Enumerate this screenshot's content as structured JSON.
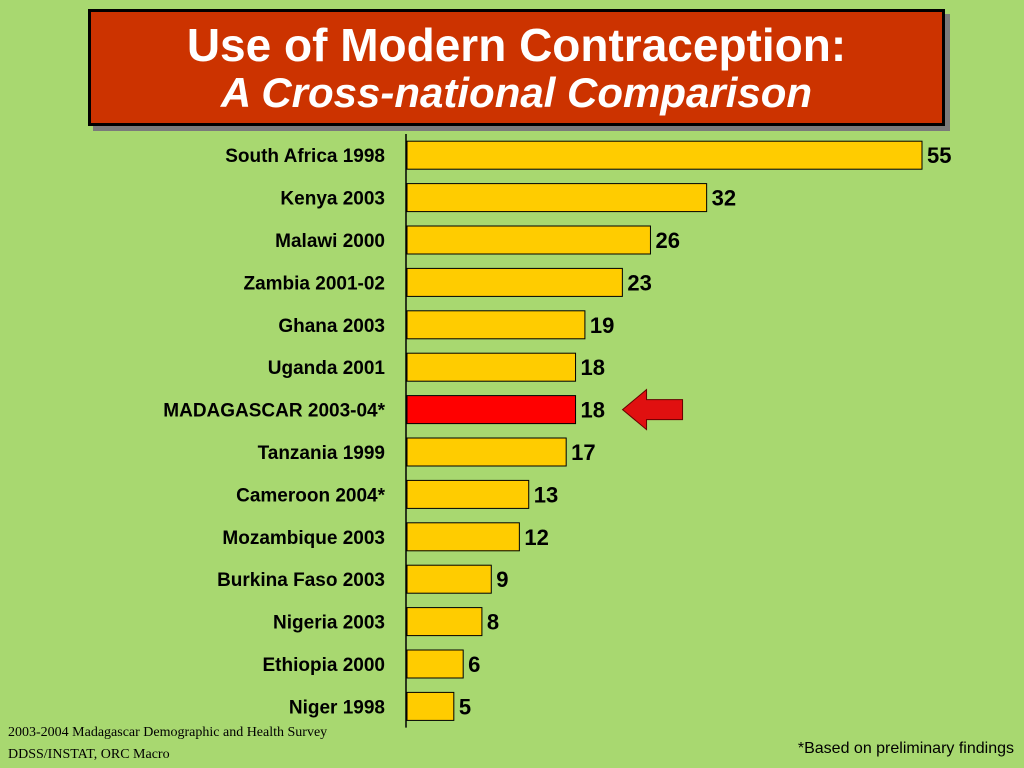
{
  "header": {
    "title": "Use of Modern Contraception:",
    "subtitle": "A Cross-national Comparison"
  },
  "chart_data": {
    "type": "bar",
    "orientation": "horizontal",
    "categories": [
      "South Africa 1998",
      "Kenya 2003",
      "Malawi 2000",
      "Zambia 2001-02",
      "Ghana 2003",
      "Uganda 2001",
      "MADAGASCAR 2003-04*",
      "Tanzania 1999",
      "Cameroon 2004*",
      "Mozambique 2003",
      "Burkina Faso 2003",
      "Nigeria 2003",
      "Ethiopia 2000",
      "Niger 1998"
    ],
    "values": [
      55,
      32,
      26,
      23,
      19,
      18,
      18,
      17,
      13,
      12,
      9,
      8,
      6,
      5
    ],
    "highlight": "MADAGASCAR 2003-04*",
    "xlim": [
      0,
      55
    ],
    "grid": false,
    "colors": {
      "bar": "#ffcc00",
      "highlight_bar": "#ff0000",
      "arrow": "#e01010",
      "background": "#a8d870",
      "title_box": "#cc3300"
    }
  },
  "footer": {
    "source_line1": "2003-2004 Madagascar Demographic and Health Survey",
    "source_line2": "DDSS/INSTAT, ORC Macro",
    "note": "*Based on preliminary findings"
  }
}
